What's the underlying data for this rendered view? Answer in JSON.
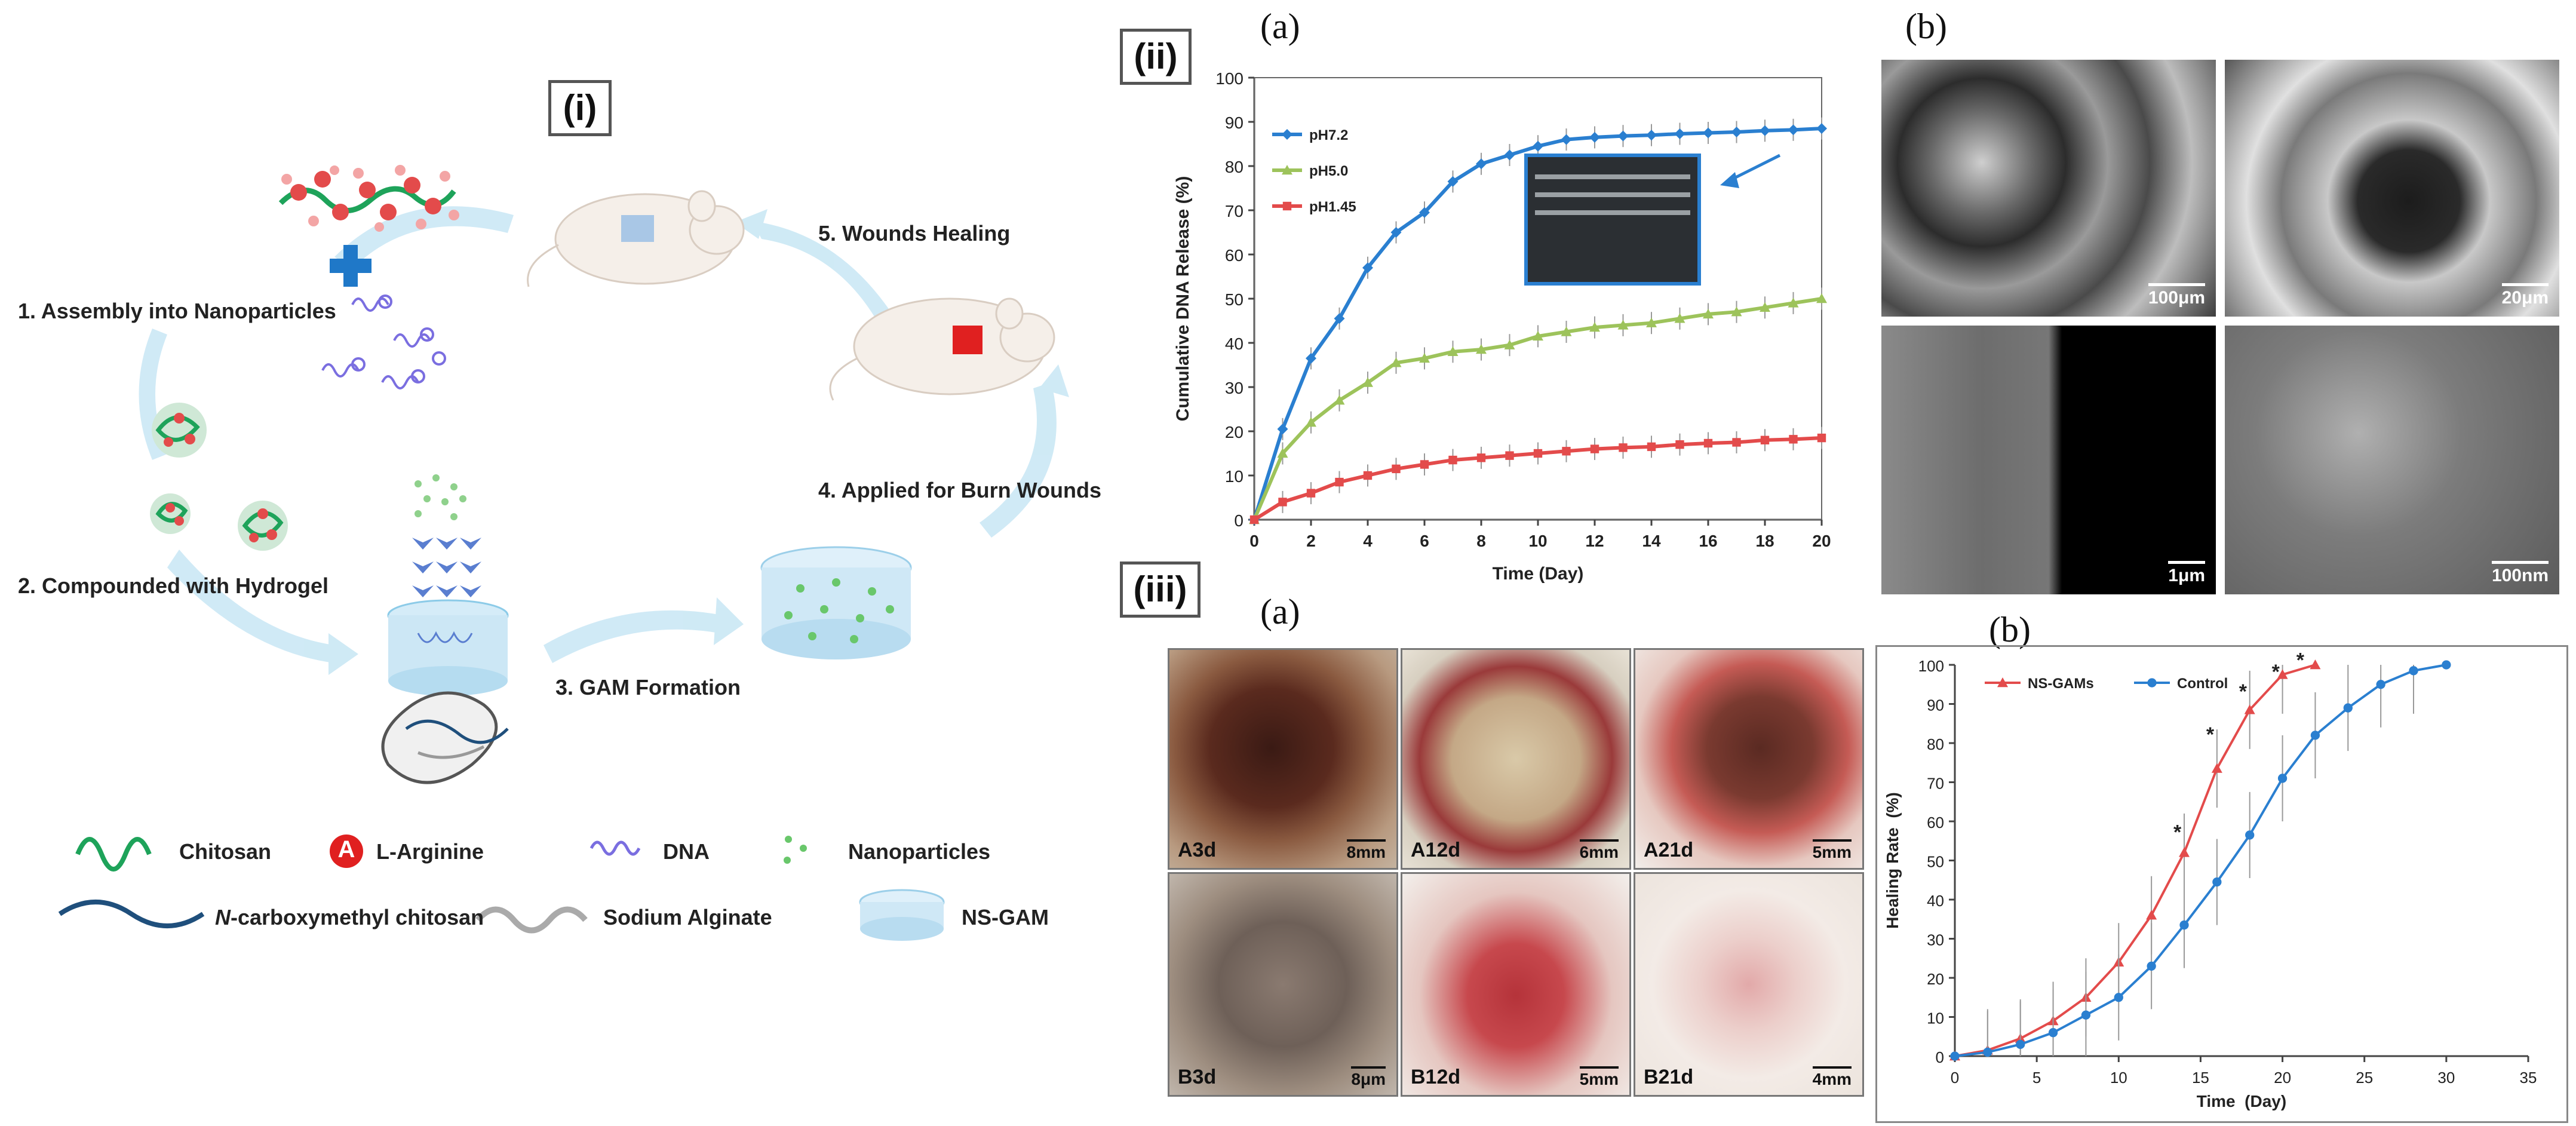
{
  "panel_i": {
    "tag": "(i)",
    "steps": {
      "s1": "1. Assembly into Nanoparticles",
      "s2": "2. Compounded with Hydrogel",
      "s3": "3. GAM Formation",
      "s4": "4. Applied for Burn Wounds",
      "s5": "5. Wounds Healing"
    },
    "legend": {
      "chitosan": "Chitosan",
      "arginine_symbol": "A",
      "arginine": "L-Arginine",
      "dna": "DNA",
      "nanoparticles": "Nanoparticles",
      "n_prefix": "N",
      "cmc": "-carboxymethyl chitosan",
      "alginate": "Sodium Alginate",
      "nsgam": "NS-GAM"
    }
  },
  "panel_ii": {
    "tag": "(ii)",
    "sub_a": "(a)",
    "sub_b": "(b)",
    "sem_scales": [
      "100μm",
      "20μm",
      "1μm",
      "100nm"
    ]
  },
  "panel_iii": {
    "tag": "(iii)",
    "sub_a": "(a)",
    "sub_b": "(b)",
    "photos": [
      {
        "label": "A3d",
        "scale": "8mm"
      },
      {
        "label": "A12d",
        "scale": "6mm"
      },
      {
        "label": "A21d",
        "scale": "5mm"
      },
      {
        "label": "B3d",
        "scale": "8μm"
      },
      {
        "label": "B12d",
        "scale": "5mm"
      },
      {
        "label": "B21d",
        "scale": "4mm"
      }
    ]
  },
  "colors": {
    "blue": "#2a7fd0",
    "green": "#9dc35b",
    "red": "#e34b4b",
    "green_strand": "#1ea35a",
    "navy_strand": "#1f4f7c",
    "arrow": "#cde9f5"
  },
  "chart_data": [
    {
      "type": "line",
      "title": "",
      "xlabel": "Time (Day)",
      "ylabel": "Cumulative DNA Release (%)",
      "xlim": [
        0,
        20
      ],
      "ylim": [
        0,
        100
      ],
      "xticks": [
        0,
        2,
        4,
        6,
        8,
        10,
        12,
        14,
        16,
        18,
        20
      ],
      "yticks": [
        0,
        10,
        20,
        30,
        40,
        50,
        60,
        70,
        80,
        90,
        100
      ],
      "legend_position": "top-left",
      "series": [
        {
          "name": "pH7.2",
          "color": "#2a7fd0",
          "marker": "diamond",
          "x": [
            0,
            1,
            2,
            3,
            4,
            5,
            6,
            7,
            8,
            9,
            10,
            11,
            12,
            13,
            14,
            15,
            16,
            17,
            18,
            19,
            20
          ],
          "y": [
            0,
            20.5,
            36.5,
            45.5,
            57,
            65,
            69.5,
            76.5,
            80.5,
            82.5,
            84.5,
            86,
            86.5,
            86.8,
            87,
            87.3,
            87.5,
            87.7,
            88,
            88.2,
            88.5
          ]
        },
        {
          "name": "pH5.0",
          "color": "#9dc35b",
          "marker": "triangle",
          "x": [
            0,
            1,
            2,
            3,
            4,
            5,
            6,
            7,
            8,
            9,
            10,
            11,
            12,
            13,
            14,
            15,
            16,
            17,
            18,
            19,
            20
          ],
          "y": [
            0,
            15,
            22,
            27,
            31,
            35.5,
            36.5,
            38,
            38.5,
            39.5,
            41.5,
            42.5,
            43.5,
            44,
            44.5,
            45.5,
            46.5,
            47,
            48,
            49,
            50
          ]
        },
        {
          "name": "pH1.45",
          "color": "#e34b4b",
          "marker": "square",
          "x": [
            0,
            1,
            2,
            3,
            4,
            5,
            6,
            7,
            8,
            9,
            10,
            11,
            12,
            13,
            14,
            15,
            16,
            17,
            18,
            19,
            20
          ],
          "y": [
            0,
            4,
            6,
            8.5,
            10,
            11.5,
            12.5,
            13.5,
            14,
            14.5,
            15,
            15.5,
            16,
            16.3,
            16.5,
            17,
            17.3,
            17.5,
            18,
            18.2,
            18.5
          ]
        }
      ]
    },
    {
      "type": "line",
      "title": "",
      "xlabel": "Time  (Day)",
      "ylabel": "Healing Rate  (%)",
      "xlim": [
        0,
        35
      ],
      "ylim": [
        0,
        100
      ],
      "xticks": [
        0,
        5,
        10,
        15,
        20,
        25,
        30,
        35
      ],
      "yticks": [
        0,
        10,
        20,
        30,
        40,
        50,
        60,
        70,
        80,
        90,
        100
      ],
      "legend_position": "top-left",
      "annotations": [
        "*",
        "*",
        "*",
        "*",
        "*"
      ],
      "annotation_x": [
        14,
        16,
        18,
        20,
        21.5
      ],
      "annotation_y": [
        57,
        82,
        93,
        98,
        101
      ],
      "series": [
        {
          "name": "NS-GAMs",
          "color": "#e34b4b",
          "marker": "triangle",
          "x": [
            0,
            2,
            4,
            6,
            8,
            10,
            12,
            14,
            16,
            18,
            20,
            22
          ],
          "y": [
            0,
            1.5,
            4.5,
            9,
            15,
            24,
            36,
            52,
            73.5,
            88.5,
            97.5,
            100
          ]
        },
        {
          "name": "Control",
          "color": "#2a7fd0",
          "marker": "circle",
          "x": [
            0,
            2,
            4,
            6,
            8,
            10,
            12,
            14,
            16,
            18,
            20,
            22,
            24,
            26,
            28,
            30
          ],
          "y": [
            0,
            1,
            3,
            6,
            10.5,
            15,
            23,
            33.5,
            44.5,
            56.5,
            71,
            82,
            89,
            95,
            98.5,
            100
          ]
        }
      ]
    }
  ]
}
